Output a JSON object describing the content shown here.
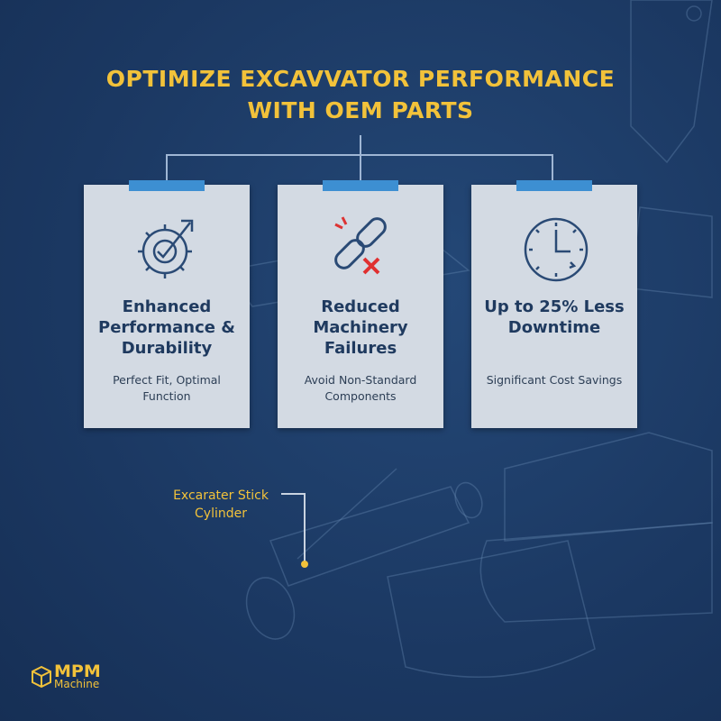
{
  "header": {
    "title_lines": [
      "OPTIMIZE EXCAVVATOR PERFORMANCE",
      "WITH OEM PARTS"
    ]
  },
  "cards": [
    {
      "title": "Enhanced Performance & Durability",
      "subtitle": "Perfect Fit, Optimal Function"
    },
    {
      "title": "Reduced Machinery Failures",
      "subtitle": "Avoid Non-Standard Components"
    },
    {
      "title": "Up to 25% Less Downtime",
      "subtitle": "Significant Cost Savings"
    }
  ],
  "callout": {
    "label": "Excarater Stick Cylinder"
  },
  "logo": {
    "brand": "MPM",
    "tagline": "Machine"
  }
}
